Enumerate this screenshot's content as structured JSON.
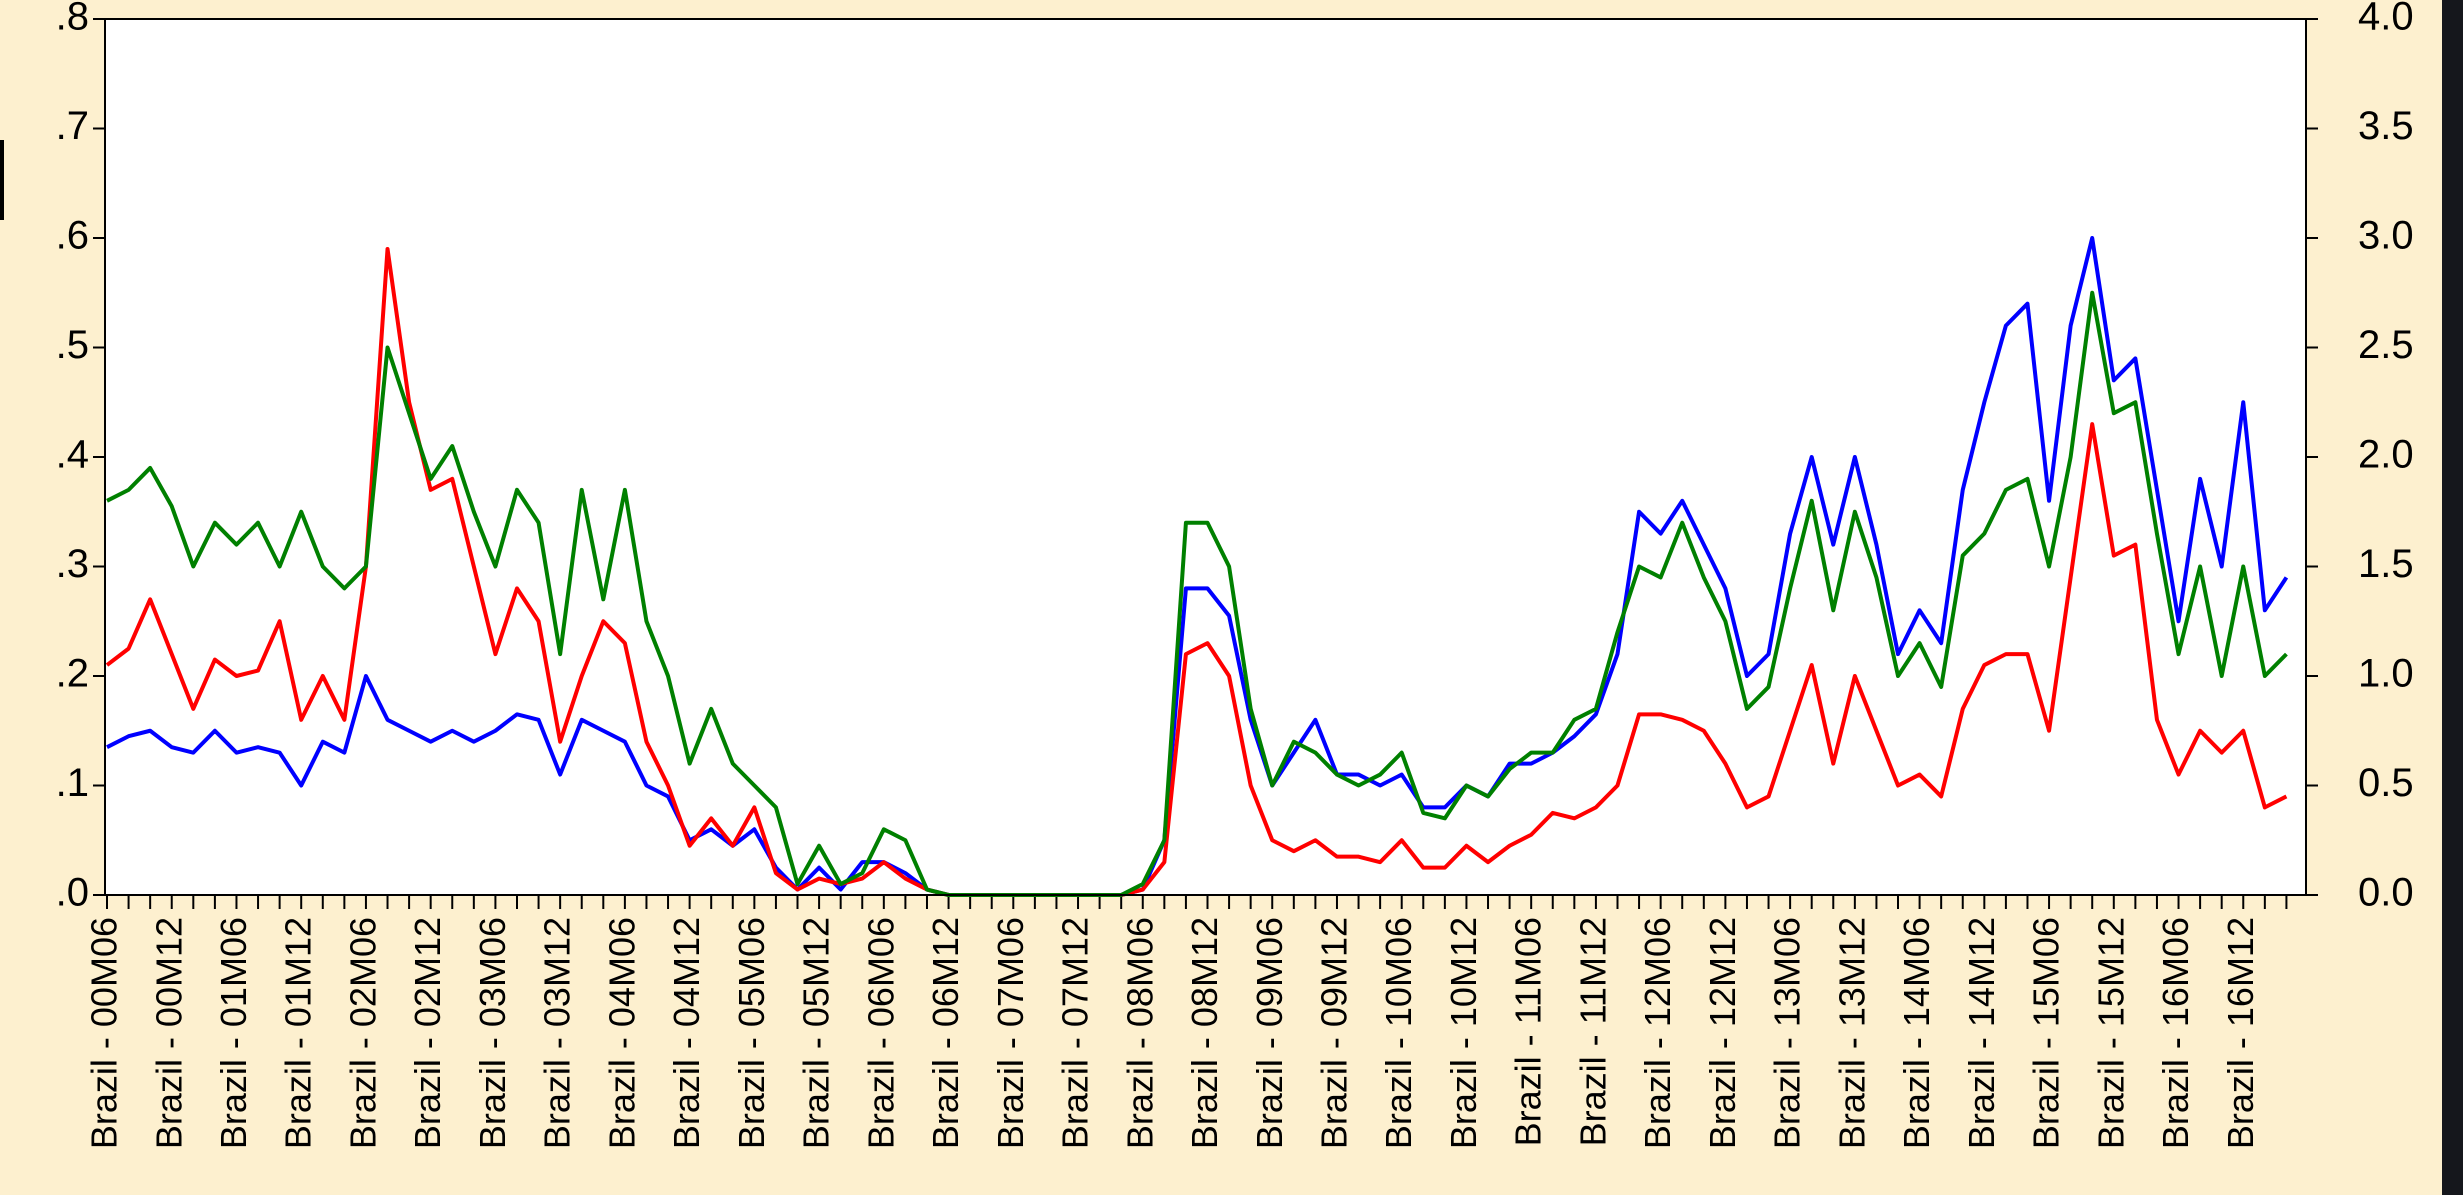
{
  "chart_data": {
    "type": "line",
    "categories": [
      "Brazil - 00M06",
      null,
      null,
      "Brazil - 00M12",
      null,
      null,
      "Brazil - 01M06",
      null,
      null,
      "Brazil - 01M12",
      null,
      null,
      "Brazil - 02M06",
      null,
      null,
      "Brazil - 02M12",
      null,
      null,
      "Brazil - 03M06",
      null,
      null,
      "Brazil - 03M12",
      null,
      null,
      "Brazil - 04M06",
      null,
      null,
      "Brazil - 04M12",
      null,
      null,
      "Brazil - 05M06",
      null,
      null,
      "Brazil - 05M12",
      null,
      null,
      "Brazil - 06M06",
      null,
      null,
      "Brazil - 06M12",
      null,
      null,
      "Brazil - 07M06",
      null,
      null,
      "Brazil - 07M12",
      null,
      null,
      "Brazil - 08M06",
      null,
      null,
      "Brazil - 08M12",
      null,
      null,
      "Brazil - 09M06",
      null,
      null,
      "Brazil - 09M12",
      null,
      null,
      "Brazil - 10M06",
      null,
      null,
      "Brazil - 10M12",
      null,
      null,
      "Brazil - 11M06",
      null,
      null,
      "Brazil - 11M12",
      null,
      null,
      "Brazil - 12M06",
      null,
      null,
      "Brazil - 12M12",
      null,
      null,
      "Brazil - 13M06",
      null,
      null,
      "Brazil - 13M12",
      null,
      null,
      "Brazil - 14M06",
      null,
      null,
      "Brazil - 14M12",
      null,
      null,
      "Brazil - 15M06",
      null,
      null,
      "Brazil - 15M12",
      null,
      null,
      "Brazil - 16M06",
      null,
      null,
      "Brazil - 16M12",
      null,
      null
    ],
    "series": [
      {
        "color": "#0000ff",
        "values": [
          0.135,
          0.145,
          0.15,
          0.135,
          0.13,
          0.15,
          0.13,
          0.135,
          0.13,
          0.1,
          0.14,
          0.13,
          0.2,
          0.16,
          0.15,
          0.14,
          0.15,
          0.14,
          0.15,
          0.165,
          0.16,
          0.11,
          0.16,
          0.15,
          0.14,
          0.1,
          0.09,
          0.05,
          0.06,
          0.045,
          0.06,
          0.025,
          0.005,
          0.025,
          0.005,
          0.03,
          0.03,
          0.02,
          0.005,
          0,
          0,
          0,
          0,
          0,
          0,
          0,
          0,
          0,
          0.005,
          0.05,
          0.28,
          0.28,
          0.255,
          0.16,
          0.1,
          0.13,
          0.16,
          0.11,
          0.11,
          0.1,
          0.11,
          0.08,
          0.08,
          0.1,
          0.09,
          0.12,
          0.12,
          0.13,
          0.145,
          0.165,
          0.22,
          0.35,
          0.33,
          0.36,
          0.32,
          0.28,
          0.2,
          0.22,
          0.33,
          0.4,
          0.32,
          0.4,
          0.32,
          0.22,
          0.26,
          0.23,
          0.37,
          0.45,
          0.52,
          0.54,
          0.36,
          0.52,
          0.6,
          0.47,
          0.49,
          0.37,
          0.25,
          0.38,
          0.3,
          0.45,
          0.26,
          0.29
        ]
      },
      {
        "color": "#ff0000",
        "values": [
          0.21,
          0.225,
          0.27,
          0.22,
          0.17,
          0.215,
          0.2,
          0.205,
          0.25,
          0.16,
          0.2,
          0.16,
          0.3,
          0.59,
          0.45,
          0.37,
          0.38,
          0.3,
          0.22,
          0.28,
          0.25,
          0.14,
          0.2,
          0.25,
          0.23,
          0.14,
          0.1,
          0.045,
          0.07,
          0.045,
          0.08,
          0.02,
          0.005,
          0.015,
          0.01,
          0.015,
          0.03,
          0.015,
          0.005,
          0,
          0,
          0,
          0,
          0,
          0,
          0,
          0,
          0,
          0.005,
          0.03,
          0.22,
          0.23,
          0.2,
          0.1,
          0.05,
          0.04,
          0.05,
          0.035,
          0.035,
          0.03,
          0.05,
          0.025,
          0.025,
          0.045,
          0.03,
          0.045,
          0.055,
          0.075,
          0.07,
          0.08,
          0.1,
          0.165,
          0.165,
          0.16,
          0.15,
          0.12,
          0.08,
          0.09,
          0.15,
          0.21,
          0.12,
          0.2,
          0.15,
          0.1,
          0.11,
          0.09,
          0.17,
          0.21,
          0.22,
          0.22,
          0.15,
          0.29,
          0.43,
          0.31,
          0.32,
          0.16,
          0.11,
          0.15,
          0.13,
          0.15,
          0.08,
          0.09
        ]
      },
      {
        "color": "#008000",
        "axis": "y2",
        "values": [
          1.8,
          1.85,
          1.95,
          1.775,
          1.5,
          1.7,
          1.6,
          1.7,
          1.5,
          1.75,
          1.5,
          1.4,
          1.5,
          2.5,
          2.2,
          1.9,
          2.05,
          1.75,
          1.5,
          1.85,
          1.7,
          1.1,
          1.85,
          1.35,
          1.85,
          1.25,
          1.0,
          0.6,
          0.85,
          0.6,
          0.5,
          0.4,
          0.05,
          0.225,
          0.05,
          0.1,
          0.3,
          0.25,
          0.025,
          0,
          0,
          0,
          0,
          0,
          0,
          0,
          0,
          0,
          0.05,
          0.25,
          1.7,
          1.7,
          1.5,
          0.85,
          0.5,
          0.7,
          0.65,
          0.55,
          0.5,
          0.55,
          0.65,
          0.375,
          0.35,
          0.5,
          0.45,
          0.575,
          0.65,
          0.65,
          0.8,
          0.85,
          1.2,
          1.5,
          1.45,
          1.7,
          1.45,
          1.25,
          0.85,
          0.95,
          1.4,
          1.8,
          1.3,
          1.75,
          1.45,
          1.0,
          1.15,
          0.95,
          1.55,
          1.65,
          1.85,
          1.9,
          1.5,
          2.0,
          2.75,
          2.2,
          2.25,
          1.65,
          1.1,
          1.5,
          1.0,
          1.5,
          1.0,
          1.1
        ]
      }
    ],
    "ylim": [
      0,
      0.8
    ],
    "yticks": [
      {
        "value": 0,
        "label": ".0"
      },
      {
        "value": 0.1,
        "label": ".1"
      },
      {
        "value": 0.2,
        "label": ".2"
      },
      {
        "value": 0.3,
        "label": ".3"
      },
      {
        "value": 0.4,
        "label": ".4"
      },
      {
        "value": 0.5,
        "label": ".5"
      },
      {
        "value": 0.6,
        "label": ".6"
      },
      {
        "value": 0.7,
        "label": ".7"
      },
      {
        "value": 0.8,
        "label": ".8"
      }
    ],
    "y2lim": [
      0,
      4
    ],
    "y2ticks": [
      {
        "value": 0,
        "label": "0.0"
      },
      0.5,
      {
        "value": 1,
        "label": "1.0"
      },
      1.5,
      {
        "value": 2,
        "label": "2.0"
      },
      2.5,
      {
        "value": 3,
        "label": "3.0"
      },
      3.5,
      {
        "value": 4,
        "label": "4.0"
      }
    ],
    "grid": false
  }
}
